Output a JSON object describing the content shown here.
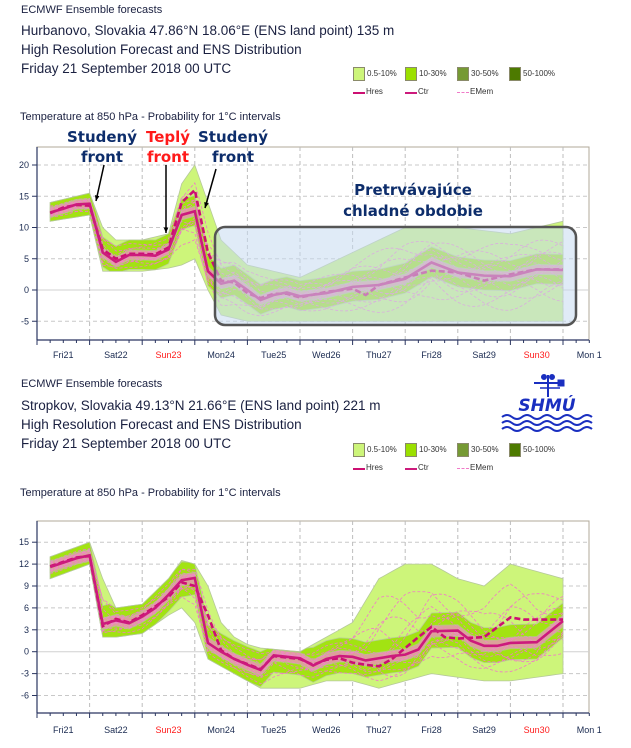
{
  "colors": {
    "p05_10": "#cdf57a",
    "p10_30": "#9be000",
    "p30_50": "#769a34",
    "p50_100": "#4d7a00",
    "hres": "#cc0f72",
    "ctr": "#cc1a7c",
    "emem": "#f07ac8",
    "annot_blue": "#0d2d6b",
    "annot_red": "#ff1a1a",
    "box_fill": "#c7daf0",
    "box_stroke": "#555555"
  },
  "legend": {
    "p05_10": "0.5-10%",
    "p10_30": "10-30%",
    "p30_50": "30-50%",
    "p50_100": "50-100%",
    "hres": "Hres",
    "ctr": "Ctr",
    "emem": "EMem"
  },
  "panels": [
    {
      "header": "ECMWF Ensemble forecasts",
      "location": "Hurbanovo, Slovakia 47.86°N 18.06°E (ENS land point) 135 m",
      "subtitle": "High Resolution Forecast and ENS Distribution",
      "date": "Friday 21 September 2018 00 UTC",
      "chart_title": "Temperature at 850 hPa - Probability for 1°C intervals"
    },
    {
      "header": "ECMWF Ensemble forecasts",
      "location": "Stropkov, Slovakia 49.13°N 21.66°E (ENS land point) 221 m",
      "subtitle": "High Resolution Forecast and ENS Distribution",
      "date": "Friday 21 September 2018 00 UTC",
      "chart_title": "Temperature at 850 hPa - Probability for 1°C intervals"
    }
  ],
  "annotations": {
    "cold_front_1_a": "Studený",
    "cold_front_1_b": "front",
    "warm_front_a": "Teplý",
    "warm_front_b": "front",
    "cold_front_2_a": "Studený",
    "cold_front_2_b": "front",
    "cold_period_a": "Pretrvávajúce",
    "cold_period_b": "chladné obdobie"
  },
  "logo": {
    "text": "SHMÚ"
  },
  "chart_data": [
    {
      "type": "line",
      "title": "Temperature at 850 hPa - Probability for 1°C intervals",
      "x_unit": "hours from Fri 21 Sep 2018 00 UTC",
      "xlim": [
        0,
        252
      ],
      "ylim": [
        -8,
        23
      ],
      "yticks": [
        20,
        15,
        10,
        5,
        0,
        -5
      ],
      "day_labels": [
        {
          "text": "Fri21",
          "weekend": false
        },
        {
          "text": "Sat22",
          "weekend": false
        },
        {
          "text": "Sun23",
          "weekend": true
        },
        {
          "text": "Mon24",
          "weekend": false
        },
        {
          "text": "Tue25",
          "weekend": false
        },
        {
          "text": "Wed26",
          "weekend": false
        },
        {
          "text": "Thu27",
          "weekend": false
        },
        {
          "text": "Fri28",
          "weekend": false
        },
        {
          "text": "Sat29",
          "weekend": false
        },
        {
          "text": "Sun30",
          "weekend": true
        },
        {
          "text": "Mon 1",
          "weekend": false
        }
      ],
      "series": [
        {
          "name": "Ctr",
          "x": [
            6,
            12,
            18,
            24,
            30,
            36,
            42,
            48,
            54,
            60,
            66,
            72,
            78,
            84,
            90,
            96,
            102,
            108,
            114,
            120,
            132,
            144,
            156,
            168,
            180,
            192,
            204,
            216,
            228,
            240
          ],
          "values": [
            12.4,
            13,
            13.7,
            13.8,
            6,
            4.5,
            5.6,
            5.6,
            5.5,
            6.5,
            12,
            12.6,
            3,
            1,
            1.5,
            0,
            -1.6,
            -0.8,
            -0.4,
            -1,
            -0.5,
            0.5,
            0.8,
            1.8,
            4.4,
            2.8,
            2.3,
            2.2,
            3.3,
            3.2
          ]
        },
        {
          "name": "Hres",
          "x": [
            6,
            12,
            18,
            24,
            30,
            36,
            42,
            48,
            54,
            60,
            66,
            72,
            78,
            84,
            90,
            96,
            102,
            108,
            114,
            120,
            132,
            144,
            150,
            156,
            168,
            180,
            192,
            204,
            216,
            228,
            240
          ],
          "values": [
            12.3,
            13.2,
            13.6,
            13.5,
            6.5,
            5,
            5.8,
            5.8,
            5.7,
            6.8,
            14,
            16,
            6,
            1.5,
            1.2,
            -0.5,
            -1.3,
            -0.6,
            -0.6,
            -1.2,
            -0.3,
            0.2,
            -0.8,
            0.8,
            2,
            3.1,
            2.8,
            1.5,
            2.5,
            3.3,
            3.3
          ]
        }
      ],
      "envelope": {
        "x": [
          6,
          24,
          30,
          36,
          48,
          60,
          66,
          72,
          78,
          84,
          96,
          120,
          144,
          168,
          192,
          216,
          240
        ],
        "low": [
          11,
          12,
          3,
          3,
          3,
          3.5,
          4,
          5,
          0,
          -4,
          -5,
          -5,
          -5,
          -5,
          -5,
          -5,
          -5
        ],
        "high": [
          14,
          15.5,
          10,
          8,
          8,
          9,
          17,
          20,
          14,
          8,
          4,
          2,
          6,
          10,
          10,
          9,
          11
        ]
      }
    },
    {
      "type": "line",
      "title": "Temperature at 850 hPa - Probability for 1°C intervals",
      "x_unit": "hours from Fri 21 Sep 2018 00 UTC",
      "xlim": [
        0,
        252
      ],
      "ylim": [
        -8.5,
        18
      ],
      "yticks": [
        15,
        12,
        9,
        6,
        3,
        0,
        -3,
        -6
      ],
      "day_labels": [
        {
          "text": "Fri21",
          "weekend": false
        },
        {
          "text": "Sat22",
          "weekend": false
        },
        {
          "text": "Sun23",
          "weekend": true
        },
        {
          "text": "Mon24",
          "weekend": false
        },
        {
          "text": "Tue25",
          "weekend": false
        },
        {
          "text": "Wed26",
          "weekend": false
        },
        {
          "text": "Thu27",
          "weekend": false
        },
        {
          "text": "Fri28",
          "weekend": false
        },
        {
          "text": "Sat29",
          "weekend": false
        },
        {
          "text": "Sun30",
          "weekend": true
        },
        {
          "text": "Mon 1",
          "weekend": false
        }
      ],
      "series": [
        {
          "name": "Ctr",
          "x": [
            6,
            12,
            18,
            24,
            30,
            36,
            42,
            48,
            54,
            60,
            66,
            72,
            78,
            84,
            90,
            96,
            102,
            108,
            114,
            120,
            126,
            132,
            138,
            144,
            150,
            156,
            162,
            168,
            174,
            180,
            192,
            198,
            204,
            210,
            216,
            228,
            240
          ],
          "values": [
            11.6,
            12.2,
            12.8,
            13.2,
            3.8,
            4.3,
            3.9,
            4.8,
            6,
            7.8,
            9.8,
            10.1,
            1.2,
            0,
            -1,
            -1.8,
            -2.5,
            -0.5,
            -0.7,
            -0.9,
            -1.9,
            -1,
            -0.6,
            -0.7,
            -1.2,
            -0.9,
            -0.6,
            -0.4,
            0.3,
            2.8,
            2.9,
            1.5,
            0.8,
            0.8,
            1.2,
            1.3,
            4.2
          ]
        },
        {
          "name": "Hres",
          "x": [
            6,
            12,
            18,
            24,
            30,
            36,
            42,
            48,
            54,
            60,
            66,
            72,
            78,
            84,
            90,
            96,
            102,
            108,
            114,
            120,
            126,
            132,
            138,
            144,
            150,
            156,
            162,
            168,
            174,
            180,
            186,
            192,
            204,
            216,
            222,
            240
          ],
          "values": [
            11.7,
            12.3,
            12.9,
            13.1,
            3.5,
            4.5,
            4,
            5,
            6.2,
            7.5,
            9.5,
            9,
            5,
            0.2,
            -1,
            -1.7,
            -2.4,
            -0.6,
            -0.8,
            -1,
            -1.8,
            -1.1,
            -0.9,
            -1.5,
            -1.8,
            -2,
            -1,
            0.5,
            2,
            3.4,
            2,
            1.8,
            2,
            4.7,
            4.4,
            4.4
          ]
        }
      ],
      "envelope": {
        "x": [
          6,
          24,
          30,
          36,
          48,
          60,
          66,
          72,
          78,
          84,
          90,
          96,
          102,
          120,
          132,
          144,
          156,
          168,
          180,
          192,
          204,
          216,
          228,
          240
        ],
        "low": [
          10,
          12,
          2,
          2,
          2.5,
          5,
          6,
          4,
          -1,
          -2,
          -3,
          -4,
          -5,
          -5,
          -4,
          -4,
          -5,
          -4,
          -3,
          -3.5,
          -4,
          -4,
          -3.5,
          -3
        ],
        "high": [
          13,
          15,
          10,
          6,
          6.5,
          10,
          12.5,
          12,
          9,
          4,
          2,
          1,
          0.5,
          0,
          2,
          4,
          10,
          12,
          12,
          10,
          9,
          12,
          11,
          10
        ]
      }
    }
  ]
}
